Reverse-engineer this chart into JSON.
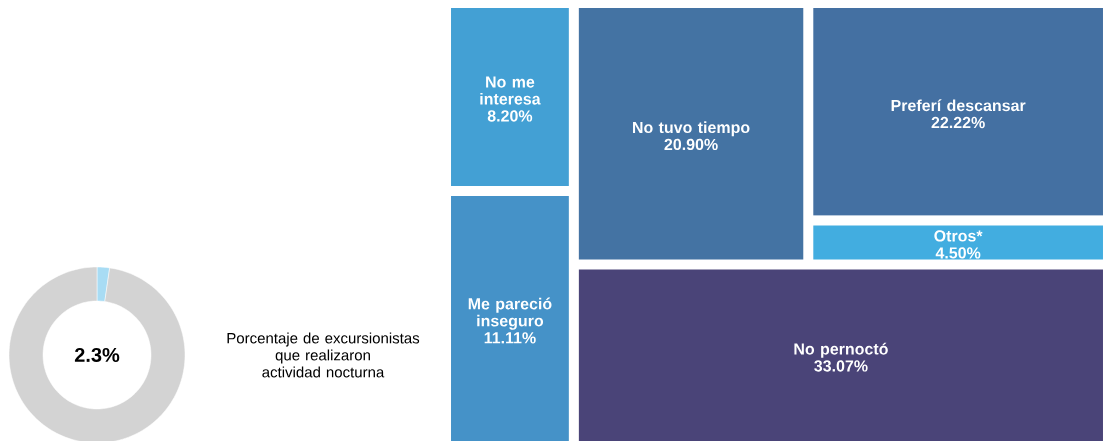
{
  "chart_data": [
    {
      "type": "donut",
      "categories": [
        null,
        null
      ],
      "values": [
        2.3,
        97.7
      ],
      "colors": [
        "#a8dcf4",
        "#d3d3d3"
      ],
      "annotations": [
        "2.3%",
        "Porcentaje de excursionistas que realizaron actividad nocturna"
      ]
    },
    {
      "type": "other",
      "categories": [
        "No me interesa",
        "Me pareció inseguro",
        "No tuvo tiempo",
        "Preferí descansar",
        "Otros*",
        "No pernoctó"
      ],
      "values": [
        8.2,
        11.11,
        20.9,
        22.22,
        4.5,
        33.07
      ],
      "value_labels": [
        "8.20%",
        "11.11%",
        "20.90%",
        "22.22%",
        "4.50%",
        "33.07%"
      ],
      "colors": [
        "#43a0d4",
        "#4592c8",
        "#4473a3",
        "#4470a2",
        "#42ade0",
        "#4a4478"
      ]
    }
  ]
}
